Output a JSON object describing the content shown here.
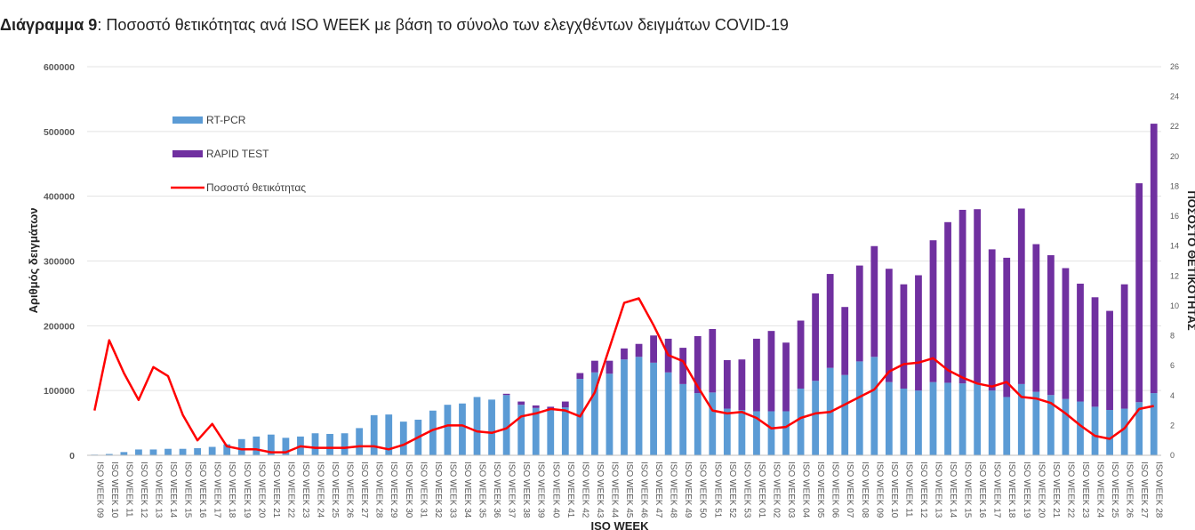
{
  "title": {
    "lead": "Διάγραμμα 9",
    "rest": ": Ποσοστό θετικότητας ανά ISO WEEK με βάση το σύνολο των ελεγχθέντων δειγμάτων COVID-19"
  },
  "colors": {
    "rtpcr": "#5B9BD5",
    "rapid": "#7030A0",
    "positivity": "#FF0000",
    "grid": "#E3E3E3"
  },
  "chart_data": {
    "type": "bar",
    "stacked": true,
    "title": "Διάγραμμα 9: Ποσοστό θετικότητας ανά ISO WEEK με βάση το σύνολο των ελεγχθέντων δειγμάτων COVID-19",
    "xlabel": "ISO WEEK",
    "ylabel": "Αριθμός δειγμάτων",
    "y2label": "ΠΟΣΟΣΤΟ ΘΕΤΙΚΟΤΗΤΑΣ",
    "ylim": [
      0,
      600000
    ],
    "yticks": [
      "0",
      "100000",
      "200000",
      "300000",
      "400000",
      "500000",
      "600000"
    ],
    "y2lim": [
      0,
      26
    ],
    "y2ticks": [
      "0",
      "2",
      "4",
      "6",
      "8",
      "10",
      "12",
      "14",
      "16",
      "18",
      "20",
      "22",
      "24",
      "26"
    ],
    "grid": true,
    "legend_position": "top-left",
    "categories": [
      "ISO WEEK 09",
      "ISO WEEK 10",
      "ISO WEEK 11",
      "ISO WEEK 12",
      "ISO WEEK 13",
      "ISO WEEK 14",
      "ISO WEEK 15",
      "ISO WEEK 16",
      "ISO WEEK 17",
      "ISO WEEK 18",
      "ISO WEEK 19",
      "ISO WEEK 20",
      "ISO WEEK 21",
      "ISO WEEK 22",
      "ISO WEEK 23",
      "ISO WEEK 24",
      "ISO WEEK 25",
      "ISO WEEK 26",
      "ISO WEEK 27",
      "ISO WEEK 28",
      "ISO WEEK 29",
      "ISO WEEK 30",
      "ISO WEEK 31",
      "ISO WEEK 32",
      "ISO WEEK 33",
      "ISO WEEK 34",
      "ISO WEEK 35",
      "ISO WEEK 36",
      "ISO WEEK 37",
      "ISO WEEK 38",
      "ISO WEEK 39",
      "ISO WEEK 40",
      "ISO WEEK 41",
      "ISO WEEK 42",
      "ISO WEEK 43",
      "ISO WEEK 44",
      "ISO WEEK 45",
      "ISO WEEK 46",
      "ISO WEEK 47",
      "ISO WEEK 48",
      "ISO WEEK 49",
      "ISO WEEK 50",
      "ISO WEEK 51",
      "ISO WEEK 52",
      "ISO WEEK 53",
      "ISO WEEK 01",
      "ISO WEEK 02",
      "ISO WEEK 03",
      "ISO WEEK 04",
      "ISO WEEK 05",
      "ISO WEEK 06",
      "ISO WEEK 07",
      "ISO WEEK 08",
      "ISO WEEK 09",
      "ISO WEEK 10",
      "ISO WEEK 11",
      "ISO WEEK 12",
      "ISO WEEK 13",
      "ISO WEEK 14",
      "ISO WEEK 15",
      "ISO WEEK 16",
      "ISO WEEK 17",
      "ISO WEEK 18",
      "ISO WEEK 19",
      "ISO WEEK 20",
      "ISO WEEK 21",
      "ISO WEEK 22",
      "ISO WEEK 23",
      "ISO WEEK 24",
      "ISO WEEK 25",
      "ISO WEEK 26",
      "ISO WEEK 27",
      "ISO WEEK 28"
    ],
    "series": [
      {
        "name": "RT-PCR",
        "kind": "bar",
        "values": [
          1000,
          2000,
          5000,
          9000,
          9000,
          10000,
          10000,
          11000,
          13000,
          17000,
          25000,
          29000,
          32000,
          27000,
          29000,
          34000,
          33000,
          34000,
          42000,
          62000,
          63000,
          52000,
          55000,
          69000,
          78000,
          80000,
          90000,
          86000,
          93000,
          78000,
          73000,
          70000,
          74000,
          118000,
          128000,
          126000,
          148000,
          152000,
          143000,
          128000,
          110000,
          96000,
          97000,
          72000,
          70000,
          68000,
          68000,
          68000,
          103000,
          115000,
          135000,
          124000,
          145000,
          152000,
          113000,
          103000,
          100000,
          113000,
          112000,
          111000,
          112000,
          100000,
          90000,
          110000,
          98000,
          93000,
          87000,
          83000,
          75000,
          70000,
          72000,
          82000,
          96000
        ]
      },
      {
        "name": "RAPID TEST",
        "kind": "bar",
        "values": [
          0,
          0,
          0,
          0,
          0,
          0,
          0,
          0,
          0,
          0,
          0,
          0,
          0,
          0,
          0,
          0,
          0,
          0,
          0,
          0,
          0,
          0,
          0,
          0,
          0,
          0,
          0,
          0,
          2000,
          5000,
          4000,
          5000,
          9000,
          9000,
          18000,
          20000,
          17000,
          20000,
          42000,
          52000,
          56000,
          88000,
          98000,
          75000,
          78000,
          112000,
          124000,
          106000,
          105000,
          135000,
          145000,
          105000,
          148000,
          171000,
          175000,
          161000,
          178000,
          219000,
          248000,
          268000,
          268000,
          218000,
          215000,
          271000,
          228000,
          216000,
          202000,
          182000,
          169000,
          153000,
          192000,
          338000,
          416000
        ]
      },
      {
        "name": "Ποσοστό θετικότητας",
        "kind": "line",
        "axis": "right",
        "values": [
          3.0,
          7.7,
          5.5,
          3.7,
          5.9,
          5.3,
          2.7,
          1.0,
          2.1,
          0.6,
          0.4,
          0.4,
          0.2,
          0.2,
          0.6,
          0.5,
          0.5,
          0.5,
          0.6,
          0.6,
          0.4,
          0.7,
          1.2,
          1.7,
          2.0,
          2.0,
          1.6,
          1.5,
          1.8,
          2.6,
          2.8,
          3.1,
          3.0,
          2.6,
          4.2,
          7.2,
          10.2,
          10.5,
          8.7,
          6.7,
          6.3,
          4.6,
          3.0,
          2.8,
          2.9,
          2.5,
          1.8,
          1.9,
          2.5,
          2.8,
          2.9,
          3.4,
          3.9,
          4.4,
          5.6,
          6.1,
          6.2,
          6.5,
          5.7,
          5.2,
          4.8,
          4.6,
          4.9,
          3.9,
          3.8,
          3.5,
          2.8,
          2.0,
          1.3,
          1.1,
          1.8,
          3.1,
          3.3
        ]
      }
    ]
  }
}
